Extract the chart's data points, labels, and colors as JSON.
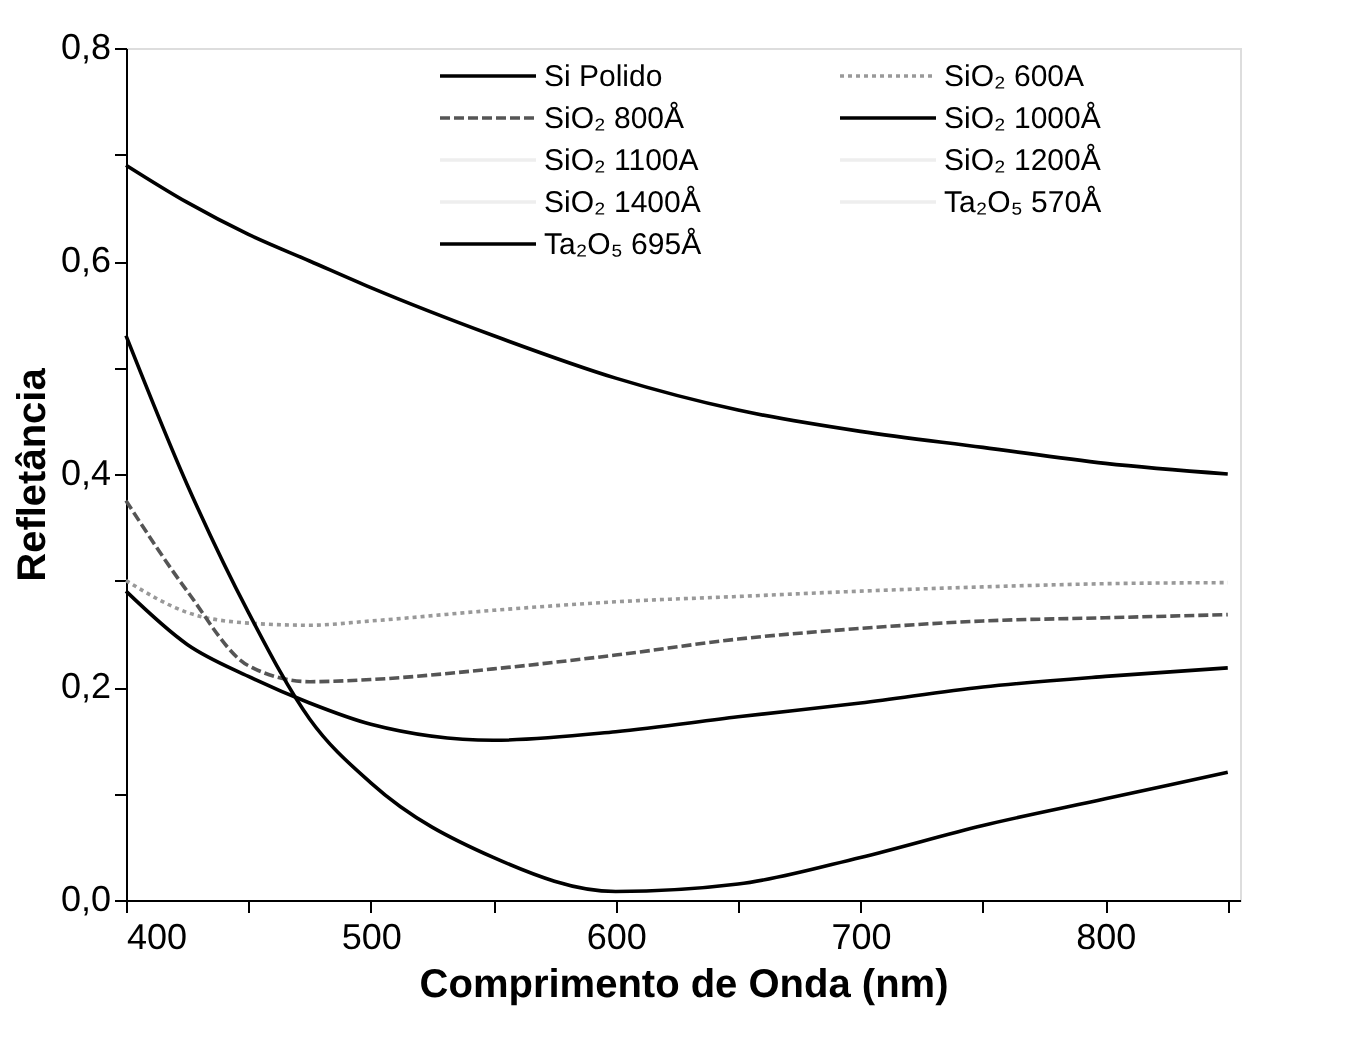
{
  "chart_data": {
    "type": "line",
    "xlabel": "Comprimento de Onda (nm)",
    "ylabel": "Refletância",
    "x": [
      400,
      425,
      450,
      475,
      500,
      550,
      600,
      650,
      700,
      750,
      800,
      850
    ],
    "xlim": [
      400,
      855
    ],
    "xticks": [
      400,
      {
        "value": 450,
        "label": null
      },
      500,
      {
        "value": 550,
        "label": null
      },
      600,
      {
        "value": 650,
        "label": null
      },
      700,
      {
        "value": 750,
        "label": null
      },
      800,
      {
        "value": 850,
        "label": null
      }
    ],
    "ylim": [
      0,
      0.8
    ],
    "yticks": [
      {
        "value": 0,
        "label": "0,0"
      },
      {
        "value": 0.1,
        "label": null
      },
      {
        "value": 0.2,
        "label": "0,2"
      },
      {
        "value": 0.3,
        "label": null
      },
      {
        "value": 0.4,
        "label": "0,4"
      },
      {
        "value": 0.5,
        "label": null
      },
      {
        "value": 0.6,
        "label": "0,6"
      },
      {
        "value": 0.7,
        "label": null
      },
      {
        "value": 0.8,
        "label": "0,8"
      }
    ],
    "grid": false,
    "legend": "top right",
    "series": [
      {
        "name": "Si Polido",
        "color": "#000000",
        "line_style": "solid",
        "values": [
          0.69,
          0.655,
          0.625,
          0.6,
          0.575,
          0.53,
          0.49,
          0.46,
          0.44,
          0.425,
          0.41,
          0.4
        ]
      },
      {
        "name": "SiO₂ 600A",
        "color": "#999999",
        "line_style": "dotted",
        "values": [
          0.3,
          0.27,
          0.26,
          0.258,
          0.262,
          0.272,
          0.28,
          0.285,
          0.29,
          0.294,
          0.297,
          0.298
        ]
      },
      {
        "name": "SiO₂ 800Å",
        "color": "#555555",
        "line_style": "dashed",
        "values": [
          0.375,
          0.29,
          0.22,
          0.205,
          0.207,
          0.217,
          0.23,
          0.245,
          0.255,
          0.262,
          0.265,
          0.268
        ]
      },
      {
        "name": "SiO₂ 1000Å",
        "color": "#000000",
        "line_style": "solid",
        "values": [
          0.29,
          0.24,
          0.21,
          0.185,
          0.165,
          0.15,
          0.158,
          0.172,
          0.185,
          0.2,
          0.21,
          0.218
        ]
      },
      {
        "name": "SiO₂ 1100A",
        "color": "#eeeeee",
        "line_style": "solid",
        "values": [
          null,
          null,
          null,
          null,
          null,
          null,
          null,
          null,
          null,
          null,
          null,
          null
        ]
      },
      {
        "name": "SiO₂ 1200Å",
        "color": "#eeeeee",
        "line_style": "solid",
        "values": [
          null,
          null,
          null,
          null,
          null,
          null,
          null,
          null,
          null,
          null,
          null,
          null
        ]
      },
      {
        "name": "SiO₂ 1400Å",
        "color": "#eeeeee",
        "line_style": "solid",
        "values": [
          null,
          null,
          null,
          null,
          null,
          null,
          null,
          null,
          null,
          null,
          null,
          null
        ]
      },
      {
        "name": "Ta₂O₅ 570Å",
        "color": "#eeeeee",
        "line_style": "solid",
        "values": [
          null,
          null,
          null,
          null,
          null,
          null,
          null,
          null,
          null,
          null,
          null,
          null
        ]
      },
      {
        "name": "Ta₂O₅ 695Å",
        "color": "#000000",
        "line_style": "solid",
        "values": [
          0.53,
          0.39,
          0.27,
          0.17,
          0.11,
          0.04,
          0.008,
          0.015,
          0.04,
          0.07,
          0.095,
          0.12
        ]
      }
    ]
  }
}
